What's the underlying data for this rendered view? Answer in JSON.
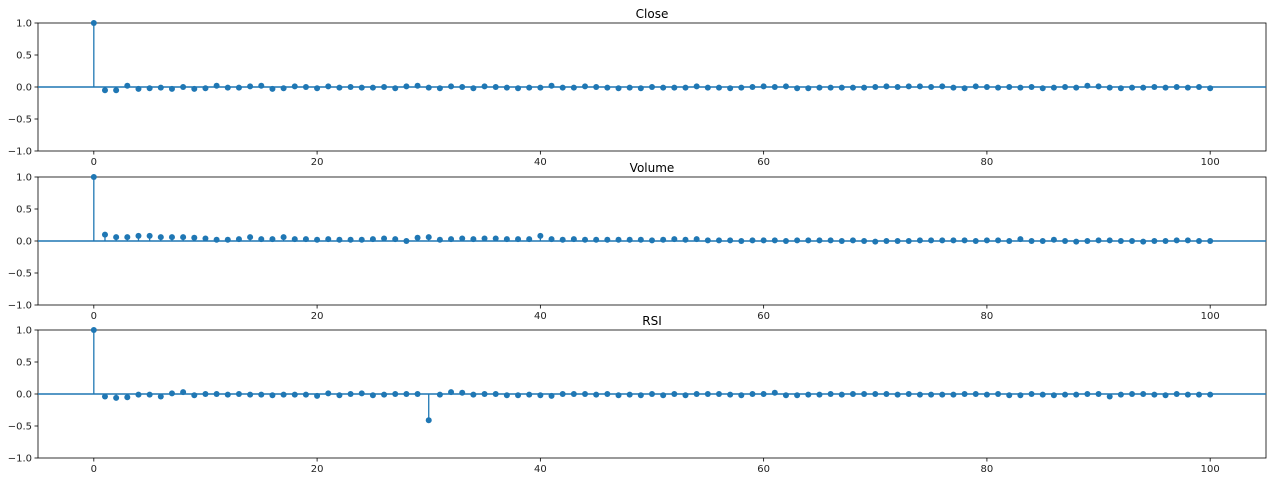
{
  "colors": {
    "stem": "#1f77b4",
    "axis": "#000000",
    "background": "#ffffff"
  },
  "chart_data": [
    {
      "type": "stem",
      "title": "Close",
      "xlabel": "",
      "ylabel": "",
      "xlim": [
        -5,
        105
      ],
      "ylim": [
        -1,
        1
      ],
      "x_ticks": [
        0,
        20,
        40,
        60,
        80,
        100
      ],
      "y_ticks": [
        -1.0,
        -0.5,
        0.0,
        0.5,
        1.0
      ],
      "x_ticklabels": [
        "0",
        "20",
        "40",
        "60",
        "80",
        "100"
      ],
      "y_ticklabels": [
        "−1.0",
        "−0.5",
        "0.0",
        "0.5",
        "1.0"
      ],
      "series": [
        {
          "name": "Close",
          "x": [
            0,
            1,
            2,
            3,
            4,
            5,
            6,
            7,
            8,
            9,
            10,
            11,
            12,
            13,
            14,
            15,
            16,
            17,
            18,
            19,
            20,
            21,
            22,
            23,
            24,
            25,
            26,
            27,
            28,
            29,
            30,
            31,
            32,
            33,
            34,
            35,
            36,
            37,
            38,
            39,
            40,
            41,
            42,
            43,
            44,
            45,
            46,
            47,
            48,
            49,
            50,
            51,
            52,
            53,
            54,
            55,
            56,
            57,
            58,
            59,
            60,
            61,
            62,
            63,
            64,
            65,
            66,
            67,
            68,
            69,
            70,
            71,
            72,
            73,
            74,
            75,
            76,
            77,
            78,
            79,
            80,
            81,
            82,
            83,
            84,
            85,
            86,
            87,
            88,
            89,
            90,
            91,
            92,
            93,
            94,
            95,
            96,
            97,
            98,
            99,
            100
          ],
          "values": [
            1.0,
            -0.05,
            -0.05,
            0.02,
            -0.03,
            -0.02,
            -0.01,
            -0.03,
            0.0,
            -0.03,
            -0.02,
            0.02,
            -0.01,
            -0.01,
            0.01,
            0.02,
            -0.03,
            -0.02,
            0.01,
            0.0,
            -0.02,
            0.01,
            -0.01,
            0.0,
            -0.01,
            -0.01,
            0.0,
            -0.02,
            0.01,
            0.02,
            -0.01,
            -0.02,
            0.01,
            0.0,
            -0.02,
            0.01,
            0.0,
            -0.01,
            -0.02,
            -0.01,
            -0.01,
            0.02,
            -0.01,
            -0.01,
            0.01,
            0.0,
            -0.01,
            -0.02,
            -0.01,
            -0.02,
            0.0,
            -0.01,
            -0.01,
            -0.01,
            0.01,
            -0.01,
            -0.01,
            -0.02,
            -0.01,
            0.0,
            0.01,
            0.0,
            0.01,
            -0.02,
            -0.02,
            -0.01,
            -0.01,
            -0.01,
            -0.01,
            -0.01,
            0.0,
            0.01,
            0.0,
            0.01,
            0.01,
            0.0,
            0.01,
            -0.01,
            -0.02,
            0.01,
            0.0,
            -0.01,
            0.0,
            -0.01,
            0.0,
            -0.02,
            -0.01,
            0.0,
            -0.01,
            0.02,
            0.01,
            -0.01,
            -0.02,
            -0.01,
            -0.01,
            0.0,
            -0.01,
            0.0,
            -0.01,
            0.0,
            -0.02
          ]
        }
      ]
    },
    {
      "type": "stem",
      "title": "Volume",
      "xlabel": "",
      "ylabel": "",
      "xlim": [
        -5,
        105
      ],
      "ylim": [
        -1,
        1
      ],
      "x_ticks": [
        0,
        20,
        40,
        60,
        80,
        100
      ],
      "y_ticks": [
        -1.0,
        -0.5,
        0.0,
        0.5,
        1.0
      ],
      "x_ticklabels": [
        "0",
        "20",
        "40",
        "60",
        "80",
        "100"
      ],
      "y_ticklabels": [
        "−1.0",
        "−0.5",
        "0.0",
        "0.5",
        "1.0"
      ],
      "series": [
        {
          "name": "Volume",
          "x": [
            0,
            1,
            2,
            3,
            4,
            5,
            6,
            7,
            8,
            9,
            10,
            11,
            12,
            13,
            14,
            15,
            16,
            17,
            18,
            19,
            20,
            21,
            22,
            23,
            24,
            25,
            26,
            27,
            28,
            29,
            30,
            31,
            32,
            33,
            34,
            35,
            36,
            37,
            38,
            39,
            40,
            41,
            42,
            43,
            44,
            45,
            46,
            47,
            48,
            49,
            50,
            51,
            52,
            53,
            54,
            55,
            56,
            57,
            58,
            59,
            60,
            61,
            62,
            63,
            64,
            65,
            66,
            67,
            68,
            69,
            70,
            71,
            72,
            73,
            74,
            75,
            76,
            77,
            78,
            79,
            80,
            81,
            82,
            83,
            84,
            85,
            86,
            87,
            88,
            89,
            90,
            91,
            92,
            93,
            94,
            95,
            96,
            97,
            98,
            99,
            100
          ],
          "values": [
            1.0,
            0.1,
            0.06,
            0.06,
            0.08,
            0.08,
            0.06,
            0.06,
            0.06,
            0.05,
            0.04,
            0.02,
            0.02,
            0.03,
            0.06,
            0.03,
            0.03,
            0.06,
            0.03,
            0.03,
            0.02,
            0.03,
            0.02,
            0.02,
            0.02,
            0.03,
            0.04,
            0.03,
            0.0,
            0.05,
            0.06,
            0.02,
            0.03,
            0.04,
            0.03,
            0.04,
            0.04,
            0.03,
            0.03,
            0.03,
            0.08,
            0.03,
            0.02,
            0.03,
            0.02,
            0.02,
            0.02,
            0.02,
            0.02,
            0.02,
            0.01,
            0.02,
            0.03,
            0.02,
            0.03,
            0.01,
            0.01,
            0.01,
            0.0,
            0.01,
            0.01,
            0.01,
            0.0,
            0.01,
            0.01,
            0.01,
            0.01,
            0.0,
            0.01,
            0.0,
            -0.01,
            0.0,
            0.0,
            0.0,
            0.01,
            0.01,
            0.01,
            0.01,
            0.01,
            0.0,
            0.01,
            0.01,
            0.0,
            0.03,
            0.0,
            0.0,
            0.02,
            0.0,
            -0.01,
            0.0,
            0.01,
            0.01,
            0.0,
            0.0,
            -0.01,
            0.0,
            0.0,
            0.01,
            0.01,
            0.0,
            0.0
          ]
        }
      ]
    },
    {
      "type": "stem",
      "title": "RSI",
      "xlabel": "",
      "ylabel": "",
      "xlim": [
        -5,
        105
      ],
      "ylim": [
        -1,
        1
      ],
      "x_ticks": [
        0,
        20,
        40,
        60,
        80,
        100
      ],
      "y_ticks": [
        -1.0,
        -0.5,
        0.0,
        0.5,
        1.0
      ],
      "x_ticklabels": [
        "0",
        "20",
        "40",
        "60",
        "80",
        "100"
      ],
      "y_ticklabels": [
        "−1.0",
        "−0.5",
        "0.0",
        "0.5",
        "1.0"
      ],
      "series": [
        {
          "name": "RSI",
          "x": [
            0,
            1,
            2,
            3,
            4,
            5,
            6,
            7,
            8,
            9,
            10,
            11,
            12,
            13,
            14,
            15,
            16,
            17,
            18,
            19,
            20,
            21,
            22,
            23,
            24,
            25,
            26,
            27,
            28,
            29,
            30,
            31,
            32,
            33,
            34,
            35,
            36,
            37,
            38,
            39,
            40,
            41,
            42,
            43,
            44,
            45,
            46,
            47,
            48,
            49,
            50,
            51,
            52,
            53,
            54,
            55,
            56,
            57,
            58,
            59,
            60,
            61,
            62,
            63,
            64,
            65,
            66,
            67,
            68,
            69,
            70,
            71,
            72,
            73,
            74,
            75,
            76,
            77,
            78,
            79,
            80,
            81,
            82,
            83,
            84,
            85,
            86,
            87,
            88,
            89,
            90,
            91,
            92,
            93,
            94,
            95,
            96,
            97,
            98,
            99,
            100
          ],
          "values": [
            1.0,
            -0.04,
            -0.06,
            -0.05,
            -0.01,
            -0.01,
            -0.04,
            0.01,
            0.03,
            -0.02,
            0.0,
            0.0,
            -0.01,
            0.0,
            -0.01,
            -0.01,
            -0.02,
            -0.01,
            -0.01,
            -0.01,
            -0.03,
            0.01,
            -0.02,
            0.0,
            0.01,
            -0.02,
            -0.01,
            0.0,
            0.0,
            0.0,
            -0.41,
            -0.01,
            0.03,
            0.02,
            -0.01,
            0.0,
            0.0,
            -0.02,
            -0.02,
            -0.01,
            -0.02,
            -0.03,
            0.0,
            0.0,
            0.0,
            -0.01,
            0.0,
            -0.02,
            -0.01,
            -0.02,
            0.0,
            -0.02,
            0.0,
            -0.02,
            0.0,
            0.0,
            0.0,
            -0.01,
            -0.02,
            0.0,
            0.0,
            0.02,
            -0.02,
            -0.02,
            -0.01,
            -0.01,
            0.0,
            -0.01,
            0.0,
            0.0,
            0.0,
            0.0,
            -0.01,
            0.0,
            -0.01,
            -0.01,
            -0.01,
            -0.01,
            0.0,
            0.0,
            -0.01,
            0.0,
            -0.02,
            -0.02,
            0.0,
            -0.01,
            -0.02,
            -0.01,
            -0.01,
            0.0,
            0.0,
            -0.04,
            -0.01,
            0.0,
            0.0,
            -0.01,
            -0.02,
            0.0,
            -0.01,
            -0.01,
            -0.01
          ]
        }
      ]
    }
  ]
}
